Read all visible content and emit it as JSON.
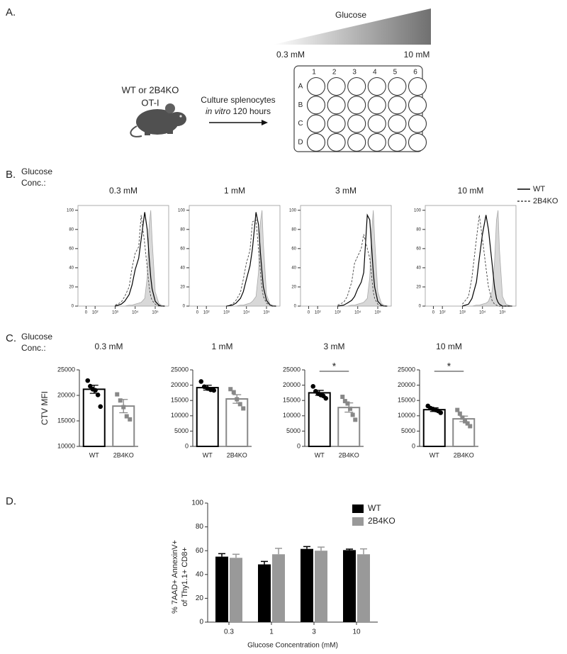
{
  "panel_a": {
    "label": "A.",
    "gradient_label": "Glucose",
    "low_label": "0.3 mM",
    "high_label": "10 mM",
    "mouse_label": [
      "WT or 2B4KO",
      "OT-I"
    ],
    "arrow_label": "Culture splenocytes",
    "arrow_label_italic": "in vitro",
    "arrow_label_rest": "120 hours",
    "plate_columns": [
      "1",
      "2",
      "3",
      "4",
      "5",
      "6"
    ],
    "plate_rows": [
      "A",
      "B",
      "C",
      "D"
    ]
  },
  "panel_b": {
    "label": "B.",
    "row_label": [
      "Glucose",
      "Conc.:"
    ]
  },
  "panel_c": {
    "label": "C.",
    "row_label": [
      "Glucose",
      "Conc.:"
    ]
  },
  "panel_d": {
    "label": "D."
  },
  "chart_data": [
    {
      "type": "line",
      "title": "0.3 mM",
      "xscale": "biexponential",
      "xlim": [
        -90,
        470000
      ],
      "ylim": [
        0,
        105
      ],
      "xticks": [
        0,
        {
          "value": 100,
          "label": "10²"
        },
        {
          "value": 1000,
          "label": "10³"
        },
        {
          "value": 10000,
          "label": "10⁴"
        },
        {
          "value": 100000,
          "label": "10⁵"
        }
      ],
      "yticks": [
        0,
        20,
        40,
        60,
        80,
        100
      ],
      "x": [
        1000,
        2000,
        3000,
        5000,
        7000,
        10000,
        15000,
        20000,
        30000,
        40000,
        50000,
        60000,
        70000,
        100000,
        150000,
        200000,
        300000
      ],
      "series": [
        {
          "name": "WT",
          "color": "#000000",
          "style": "solid",
          "values": [
            0,
            2,
            5,
            12,
            22,
            38,
            50,
            70,
            98,
            80,
            50,
            30,
            18,
            5,
            1,
            0,
            0
          ]
        },
        {
          "name": "2B4KO",
          "color": "#444444",
          "style": "dashed",
          "values": [
            1,
            4,
            10,
            20,
            40,
            55,
            62,
            95,
            65,
            40,
            20,
            10,
            6,
            2,
            0,
            0,
            0
          ]
        },
        {
          "color": "#c8c8c8",
          "style": "filled",
          "values": [
            0,
            0,
            0,
            1,
            1,
            2,
            3,
            4,
            8,
            30,
            85,
            100,
            70,
            15,
            3,
            1,
            0
          ]
        }
      ]
    },
    {
      "type": "line",
      "title": "1 mM",
      "xscale": "biexponential",
      "xlim": [
        -90,
        470000
      ],
      "ylim": [
        0,
        105
      ],
      "xticks": [
        0,
        {
          "value": 100,
          "label": "10²"
        },
        {
          "value": 1000,
          "label": "10³"
        },
        {
          "value": 10000,
          "label": "10⁴"
        },
        {
          "value": 100000,
          "label": "10⁵"
        }
      ],
      "yticks": [
        0,
        20,
        40,
        60,
        80,
        100
      ],
      "x": [
        1000,
        2000,
        3000,
        5000,
        7000,
        10000,
        15000,
        20000,
        30000,
        40000,
        50000,
        60000,
        70000,
        100000,
        150000,
        200000,
        300000
      ],
      "series": [
        {
          "name": "WT",
          "color": "#000000",
          "style": "solid",
          "values": [
            0,
            1,
            3,
            8,
            15,
            28,
            42,
            60,
            98,
            85,
            55,
            35,
            20,
            6,
            1,
            0,
            0
          ]
        },
        {
          "name": "2B4KO",
          "color": "#444444",
          "style": "dashed",
          "values": [
            0,
            2,
            6,
            14,
            28,
            45,
            58,
            88,
            90,
            60,
            35,
            18,
            10,
            3,
            1,
            0,
            0
          ]
        },
        {
          "color": "#c8c8c8",
          "style": "filled",
          "values": [
            0,
            0,
            0,
            1,
            1,
            2,
            3,
            5,
            10,
            35,
            88,
            100,
            65,
            12,
            2,
            1,
            0
          ]
        }
      ]
    },
    {
      "type": "line",
      "title": "3 mM",
      "xscale": "biexponential",
      "xlim": [
        -90,
        470000
      ],
      "ylim": [
        0,
        105
      ],
      "xticks": [
        0,
        {
          "value": 100,
          "label": "10²"
        },
        {
          "value": 1000,
          "label": "10³"
        },
        {
          "value": 10000,
          "label": "10⁴"
        },
        {
          "value": 100000,
          "label": "10⁵"
        }
      ],
      "yticks": [
        0,
        20,
        40,
        60,
        80,
        100
      ],
      "x": [
        1000,
        2000,
        3000,
        5000,
        7000,
        10000,
        15000,
        20000,
        30000,
        40000,
        50000,
        60000,
        70000,
        100000,
        150000,
        200000,
        300000
      ],
      "series": [
        {
          "name": "WT",
          "color": "#000000",
          "style": "solid",
          "values": [
            0,
            1,
            3,
            6,
            10,
            18,
            25,
            35,
            95,
            90,
            60,
            35,
            20,
            5,
            1,
            0,
            0
          ]
        },
        {
          "name": "2B4KO",
          "color": "#444444",
          "style": "dashed",
          "values": [
            1,
            4,
            10,
            25,
            45,
            52,
            60,
            75,
            60,
            50,
            30,
            15,
            8,
            2,
            0,
            0,
            0
          ]
        },
        {
          "color": "#c8c8c8",
          "style": "filled",
          "values": [
            0,
            0,
            0,
            1,
            1,
            2,
            3,
            4,
            8,
            30,
            80,
            100,
            70,
            15,
            3,
            1,
            0
          ]
        }
      ]
    },
    {
      "type": "line",
      "title": "10 mM",
      "xscale": "biexponential",
      "xlim": [
        -90,
        470000
      ],
      "ylim": [
        0,
        105
      ],
      "legend": "right",
      "xticks": [
        0,
        {
          "value": 100,
          "label": "10²"
        },
        {
          "value": 1000,
          "label": "10³"
        },
        {
          "value": 10000,
          "label": "10⁴"
        },
        {
          "value": 100000,
          "label": "10⁵"
        }
      ],
      "yticks": [
        0,
        20,
        40,
        60,
        80,
        100
      ],
      "x": [
        1000,
        2000,
        3000,
        5000,
        7000,
        10000,
        15000,
        20000,
        30000,
        40000,
        50000,
        60000,
        70000,
        100000,
        150000,
        200000,
        300000
      ],
      "series": [
        {
          "name": "WT",
          "color": "#000000",
          "style": "solid",
          "values": [
            0,
            2,
            8,
            25,
            50,
            75,
            95,
            80,
            45,
            20,
            8,
            4,
            2,
            0,
            0,
            0,
            0
          ]
        },
        {
          "name": "2B4KO",
          "color": "#444444",
          "style": "dashed",
          "values": [
            2,
            10,
            30,
            70,
            95,
            70,
            40,
            20,
            6,
            2,
            1,
            0,
            0,
            0,
            0,
            0,
            0
          ]
        },
        {
          "color": "#c8c8c8",
          "style": "filled",
          "values": [
            0,
            0,
            0,
            1,
            1,
            2,
            3,
            5,
            15,
            45,
            90,
            100,
            60,
            10,
            2,
            1,
            0
          ]
        }
      ]
    },
    {
      "type": "bar",
      "title": "0.3 mM",
      "ylabel": "CTV MFI",
      "categories": [
        "WT",
        "2B4KO"
      ],
      "colors": [
        "#000000",
        "#888888"
      ],
      "markers": [
        "circle",
        "square"
      ],
      "values": [
        21200,
        17900
      ],
      "errors": [
        800,
        1300
      ],
      "points": [
        [
          22900,
          21800,
          21200,
          21000,
          20100,
          17800
        ],
        [
          20200,
          19000,
          17700,
          15900,
          15300
        ]
      ],
      "ylim": [
        10000,
        25000
      ],
      "yticks": [
        10000,
        15000,
        20000,
        25000
      ]
    },
    {
      "type": "bar",
      "title": "1 mM",
      "categories": [
        "WT",
        "2B4KO"
      ],
      "colors": [
        "#000000",
        "#888888"
      ],
      "markers": [
        "circle",
        "square"
      ],
      "values": [
        19200,
        15500
      ],
      "errors": [
        800,
        1400
      ],
      "points": [
        [
          21200,
          19500,
          18900,
          18500,
          18300
        ],
        [
          18700,
          17700,
          15400,
          13800,
          12400
        ]
      ],
      "ylim": [
        0,
        25000
      ],
      "yticks": [
        0,
        5000,
        10000,
        15000,
        20000,
        25000
      ]
    },
    {
      "type": "bar",
      "title": "3 mM",
      "annotation": "*",
      "categories": [
        "WT",
        "2B4KO"
      ],
      "colors": [
        "#000000",
        "#888888"
      ],
      "markers": [
        "circle",
        "square"
      ],
      "values": [
        17500,
        12700
      ],
      "errors": [
        800,
        1500
      ],
      "points": [
        [
          19600,
          18000,
          17200,
          16800,
          16500,
          15700
        ],
        [
          16200,
          14800,
          14000,
          12300,
          10300,
          8700
        ]
      ],
      "ylim": [
        0,
        25000
      ],
      "yticks": [
        0,
        5000,
        10000,
        15000,
        20000,
        25000
      ]
    },
    {
      "type": "bar",
      "title": "10 mM",
      "annotation": "*",
      "categories": [
        "WT",
        "2B4KO"
      ],
      "colors": [
        "#000000",
        "#888888"
      ],
      "markers": [
        "circle",
        "square"
      ],
      "values": [
        12000,
        9000
      ],
      "errors": [
        600,
        900
      ],
      "points": [
        [
          13200,
          12500,
          12200,
          11900,
          11600,
          11000
        ],
        [
          11900,
          10700,
          9400,
          8200,
          7500,
          6600
        ]
      ],
      "ylim": [
        0,
        25000
      ],
      "yticks": [
        0,
        5000,
        10000,
        15000,
        20000,
        25000
      ]
    },
    {
      "type": "grouped_bar",
      "xlabel": "Glucose Concentration (mM)",
      "ylabel": [
        "% 7AAD+ AnnexinV+",
        "of Thy1.1+ CD8+"
      ],
      "legend": "upper right",
      "categories": [
        "0.3",
        "1",
        "3",
        "10"
      ],
      "series": [
        {
          "name": "WT",
          "color": "#000000",
          "values": [
            55,
            48.5,
            61.5,
            60.5
          ],
          "errors": [
            2.5,
            2.5,
            2,
            0.8
          ]
        },
        {
          "name": "2B4KO",
          "color": "#999999",
          "values": [
            54,
            57,
            60,
            57
          ],
          "errors": [
            3,
            5,
            3,
            4.5
          ]
        }
      ],
      "ylim": [
        0,
        100
      ],
      "yticks": [
        0,
        20,
        40,
        60,
        80,
        100
      ]
    }
  ]
}
